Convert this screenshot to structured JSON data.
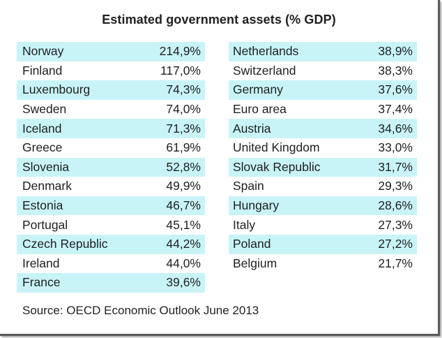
{
  "title": "Estimated government assets (% GDP)",
  "highlight_color": "#c8f4f8",
  "left_column": [
    {
      "country": "Norway",
      "value": "214,9%"
    },
    {
      "country": "Finland",
      "value": "117,0%"
    },
    {
      "country": "Luxembourg",
      "value": "74,3%"
    },
    {
      "country": "Sweden",
      "value": "74,0%"
    },
    {
      "country": "Iceland",
      "value": "71,3%"
    },
    {
      "country": "Greece",
      "value": "61,9%"
    },
    {
      "country": "Slovenia",
      "value": "52,8%"
    },
    {
      "country": "Denmark",
      "value": "49,9%"
    },
    {
      "country": "Estonia",
      "value": "46,7%"
    },
    {
      "country": "Portugal",
      "value": "45,1%"
    },
    {
      "country": "Czech Republic",
      "value": "44,2%"
    },
    {
      "country": "Ireland",
      "value": "44,0%"
    },
    {
      "country": "France",
      "value": "39,6%"
    }
  ],
  "right_column": [
    {
      "country": "Netherlands",
      "value": "38,9%"
    },
    {
      "country": "Switzerland",
      "value": "38,3%"
    },
    {
      "country": "Germany",
      "value": "37,6%"
    },
    {
      "country": "Euro area",
      "value": "37,4%"
    },
    {
      "country": "Austria",
      "value": "34,6%"
    },
    {
      "country": "United Kingdom",
      "value": "33,0%"
    },
    {
      "country": "Slovak Republic",
      "value": "31,7%"
    },
    {
      "country": "Spain",
      "value": "29,3%"
    },
    {
      "country": "Hungary",
      "value": "28,6%"
    },
    {
      "country": "Italy",
      "value": "27,3%"
    },
    {
      "country": "Poland",
      "value": "27,2%"
    },
    {
      "country": "Belgium",
      "value": "21,7%"
    }
  ],
  "source": "Source: OECD Economic Outlook June 2013"
}
